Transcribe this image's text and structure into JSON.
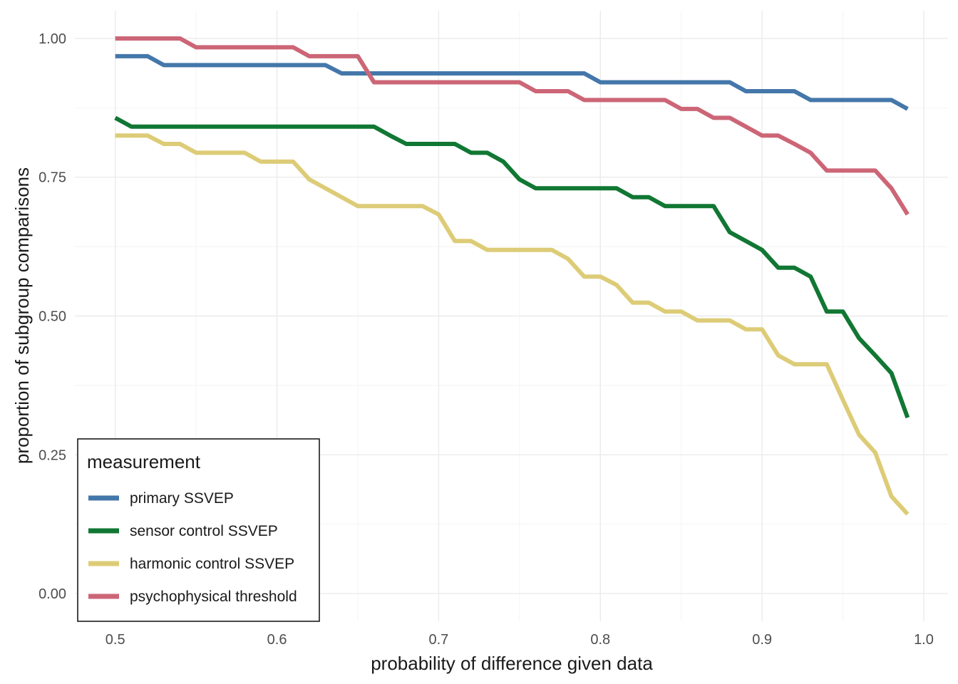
{
  "chart_data": {
    "type": "line",
    "xlabel": "probability of difference given data",
    "ylabel": "proportion of subgroup comparisons",
    "xlim": [
      0.475,
      1.015
    ],
    "ylim": [
      -0.05,
      1.05
    ],
    "x_ticks": [
      0.5,
      0.6,
      0.7,
      0.8,
      0.9,
      1.0
    ],
    "x_tick_labels": [
      "0.5",
      "0.6",
      "0.7",
      "0.8",
      "0.9",
      "1.0"
    ],
    "y_ticks": [
      0.0,
      0.25,
      0.5,
      0.75,
      1.0
    ],
    "y_tick_labels": [
      "0.00",
      "0.25",
      "0.50",
      "0.75",
      "1.00"
    ],
    "grid": true,
    "legend": {
      "title": "measurement",
      "position": "bottom-left",
      "entries": [
        "primary SSVEP",
        "sensor control SSVEP",
        "harmonic control SSVEP",
        "psychophysical threshold"
      ]
    },
    "x": [
      0.5,
      0.51,
      0.52,
      0.53,
      0.54,
      0.55,
      0.56,
      0.57,
      0.58,
      0.59,
      0.6,
      0.61,
      0.62,
      0.63,
      0.64,
      0.65,
      0.66,
      0.67,
      0.68,
      0.69,
      0.7,
      0.71,
      0.72,
      0.73,
      0.74,
      0.75,
      0.76,
      0.77,
      0.78,
      0.79,
      0.8,
      0.81,
      0.82,
      0.83,
      0.84,
      0.85,
      0.86,
      0.87,
      0.88,
      0.89,
      0.9,
      0.91,
      0.92,
      0.93,
      0.94,
      0.95,
      0.96,
      0.97,
      0.98,
      0.99
    ],
    "series": [
      {
        "name": "primary SSVEP",
        "color": "#4477aa",
        "values": [
          0.968,
          0.968,
          0.968,
          0.952,
          0.952,
          0.952,
          0.952,
          0.952,
          0.952,
          0.952,
          0.952,
          0.952,
          0.952,
          0.952,
          0.937,
          0.937,
          0.937,
          0.937,
          0.937,
          0.937,
          0.937,
          0.937,
          0.937,
          0.937,
          0.937,
          0.937,
          0.937,
          0.937,
          0.937,
          0.937,
          0.921,
          0.921,
          0.921,
          0.921,
          0.921,
          0.921,
          0.921,
          0.921,
          0.921,
          0.905,
          0.905,
          0.905,
          0.905,
          0.889,
          0.889,
          0.889,
          0.889,
          0.889,
          0.889,
          0.873
        ]
      },
      {
        "name": "sensor control SSVEP",
        "color": "#117733",
        "values": [
          0.857,
          0.841,
          0.841,
          0.841,
          0.841,
          0.841,
          0.841,
          0.841,
          0.841,
          0.841,
          0.841,
          0.841,
          0.841,
          0.841,
          0.841,
          0.841,
          0.841,
          0.825,
          0.81,
          0.81,
          0.81,
          0.81,
          0.794,
          0.794,
          0.778,
          0.746,
          0.73,
          0.73,
          0.73,
          0.73,
          0.73,
          0.73,
          0.714,
          0.714,
          0.698,
          0.698,
          0.698,
          0.698,
          0.651,
          0.635,
          0.619,
          0.587,
          0.587,
          0.571,
          0.508,
          0.508,
          0.46,
          0.429,
          0.397,
          0.317
        ]
      },
      {
        "name": "harmonic control SSVEP",
        "color": "#ddcc77",
        "values": [
          0.825,
          0.825,
          0.825,
          0.81,
          0.81,
          0.794,
          0.794,
          0.794,
          0.794,
          0.778,
          0.778,
          0.778,
          0.746,
          0.73,
          0.714,
          0.698,
          0.698,
          0.698,
          0.698,
          0.698,
          0.683,
          0.635,
          0.635,
          0.619,
          0.619,
          0.619,
          0.619,
          0.619,
          0.603,
          0.571,
          0.571,
          0.556,
          0.524,
          0.524,
          0.508,
          0.508,
          0.492,
          0.492,
          0.492,
          0.476,
          0.476,
          0.429,
          0.413,
          0.413,
          0.413,
          0.349,
          0.286,
          0.254,
          0.175,
          0.143
        ]
      },
      {
        "name": "psychophysical threshold",
        "color": "#cc6677",
        "values": [
          1.0,
          1.0,
          1.0,
          1.0,
          1.0,
          0.984,
          0.984,
          0.984,
          0.984,
          0.984,
          0.984,
          0.984,
          0.968,
          0.968,
          0.968,
          0.968,
          0.921,
          0.921,
          0.921,
          0.921,
          0.921,
          0.921,
          0.921,
          0.921,
          0.921,
          0.921,
          0.905,
          0.905,
          0.905,
          0.889,
          0.889,
          0.889,
          0.889,
          0.889,
          0.889,
          0.873,
          0.873,
          0.857,
          0.857,
          0.841,
          0.825,
          0.825,
          0.81,
          0.794,
          0.762,
          0.762,
          0.762,
          0.762,
          0.73,
          0.683
        ]
      }
    ]
  }
}
